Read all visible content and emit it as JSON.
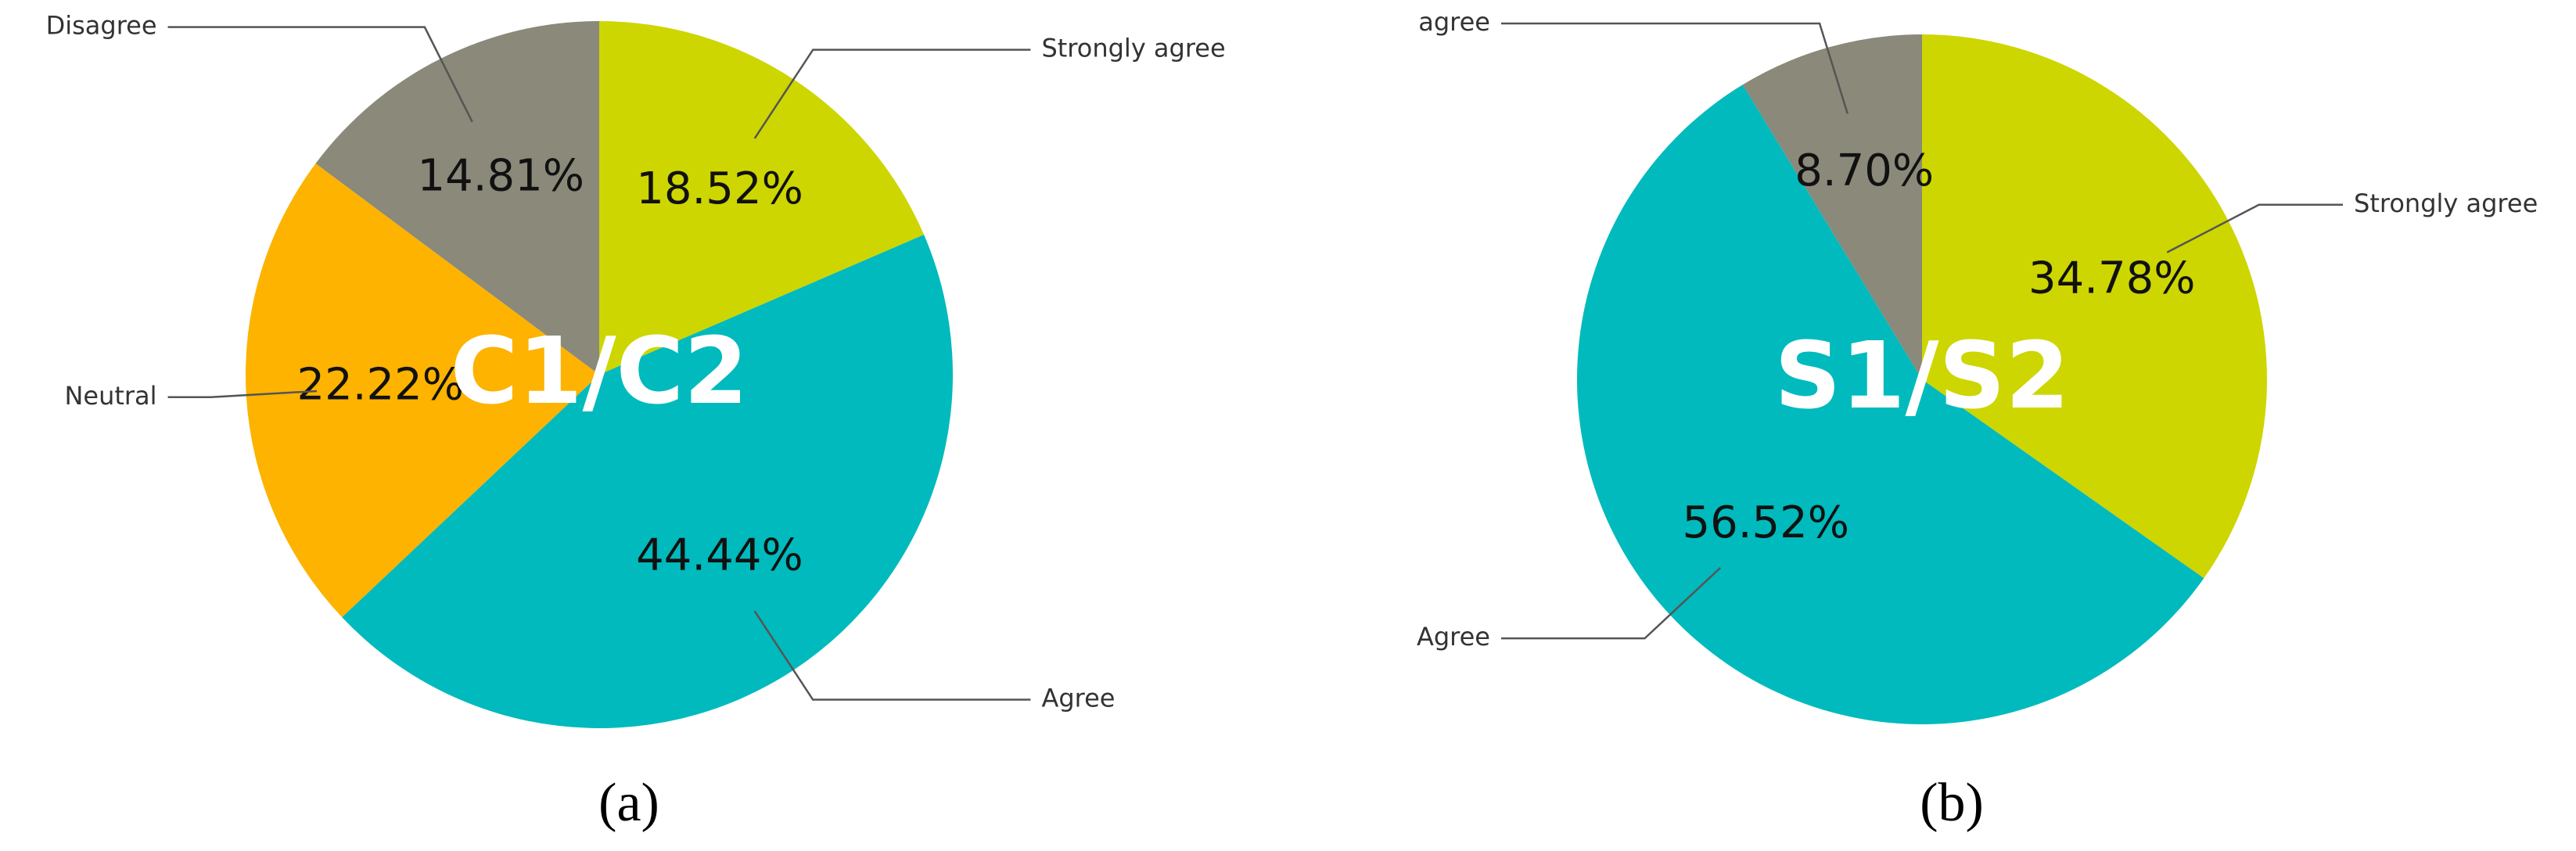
{
  "chart_data": [
    {
      "type": "pie",
      "title": "C1/C2",
      "caption": "(a)",
      "categories": [
        "Strongly agree",
        "Agree",
        "Neutral",
        "Disagree"
      ],
      "values": [
        18.52,
        44.44,
        22.22,
        14.81
      ],
      "value_labels": [
        "18.52%",
        "44.44%",
        "22.22%",
        "14.81%"
      ],
      "colors": [
        "#cdd600",
        "#00babd",
        "#fdb300",
        "#8a897a"
      ]
    },
    {
      "type": "pie",
      "title": "S1/S2",
      "caption": "(b)",
      "categories": [
        "Strongly agree",
        "Agree",
        "agree"
      ],
      "values": [
        34.78,
        56.52,
        8.7
      ],
      "value_labels": [
        "34.78%",
        "56.52%",
        "8.70%"
      ],
      "colors": [
        "#cdd600",
        "#00babd",
        "#8a897a"
      ]
    }
  ]
}
